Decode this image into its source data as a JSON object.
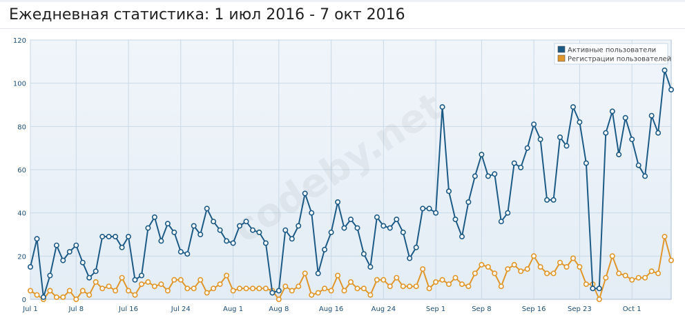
{
  "page": {
    "title": "Ежедневная статистика: 1 июл 2016 - 7 окт 2016"
  },
  "watermark": "codeby.net",
  "chart_data": {
    "type": "line",
    "ylim": [
      0,
      120
    ],
    "yticks": [
      0,
      20,
      40,
      60,
      80,
      100,
      120
    ],
    "xticks": [
      {
        "day": 0,
        "label": "Jul 1"
      },
      {
        "day": 7,
        "label": "Jul 8"
      },
      {
        "day": 15,
        "label": "Jul 16"
      },
      {
        "day": 23,
        "label": "Jul 24"
      },
      {
        "day": 31,
        "label": "Aug 1"
      },
      {
        "day": 38,
        "label": "Aug 8"
      },
      {
        "day": 46,
        "label": "Aug 16"
      },
      {
        "day": 54,
        "label": "Aug 24"
      },
      {
        "day": 62,
        "label": "Sep 1"
      },
      {
        "day": 69,
        "label": "Sep 8"
      },
      {
        "day": 77,
        "label": "Sep 16"
      },
      {
        "day": 84,
        "label": "Sep 23"
      },
      {
        "day": 92,
        "label": "Oct 1"
      }
    ],
    "grid": true,
    "legend_position": "top-right",
    "series": [
      {
        "name": "Активные пользователи",
        "color": "#1c5a86",
        "values": [
          15,
          28,
          1,
          11,
          25,
          18,
          22,
          25,
          17,
          10,
          13,
          29,
          29,
          29,
          24,
          29,
          9,
          11,
          33,
          38,
          27,
          35,
          31,
          22,
          21,
          34,
          30,
          42,
          36,
          32,
          27,
          26,
          34,
          36,
          32,
          31,
          26,
          3,
          4,
          32,
          28,
          34,
          49,
          40,
          12,
          23,
          31,
          45,
          33,
          37,
          33,
          21,
          15,
          38,
          34,
          33,
          37,
          31,
          19,
          24,
          42,
          42,
          40,
          89,
          50,
          37,
          29,
          45,
          57,
          67,
          57,
          58,
          36,
          40,
          63,
          61,
          70,
          81,
          74,
          46,
          46,
          75,
          71,
          89,
          82,
          63,
          5,
          5,
          77,
          87,
          67,
          84,
          74,
          62,
          57,
          85,
          77,
          106,
          97
        ]
      },
      {
        "name": "Регистрации пользователей",
        "color": "#e0962a",
        "values": [
          4,
          2,
          0,
          4,
          1,
          1,
          4,
          0,
          4,
          2,
          8,
          5,
          6,
          4,
          10,
          4,
          2,
          7,
          8,
          6,
          7,
          4,
          9,
          9,
          5,
          5,
          9,
          3,
          5,
          7,
          11,
          4,
          5,
          5,
          5,
          5,
          5,
          4,
          0,
          6,
          4,
          6,
          12,
          2,
          3,
          5,
          4,
          11,
          4,
          8,
          5,
          5,
          2,
          9,
          9,
          6,
          10,
          6,
          6,
          6,
          14,
          5,
          8,
          9,
          7,
          10,
          7,
          6,
          12,
          16,
          15,
          12,
          6,
          14,
          16,
          13,
          14,
          20,
          15,
          12,
          12,
          17,
          15,
          19,
          15,
          7,
          7,
          0,
          10,
          20,
          12,
          11,
          9,
          10,
          10,
          13,
          12,
          29,
          18
        ]
      }
    ]
  }
}
